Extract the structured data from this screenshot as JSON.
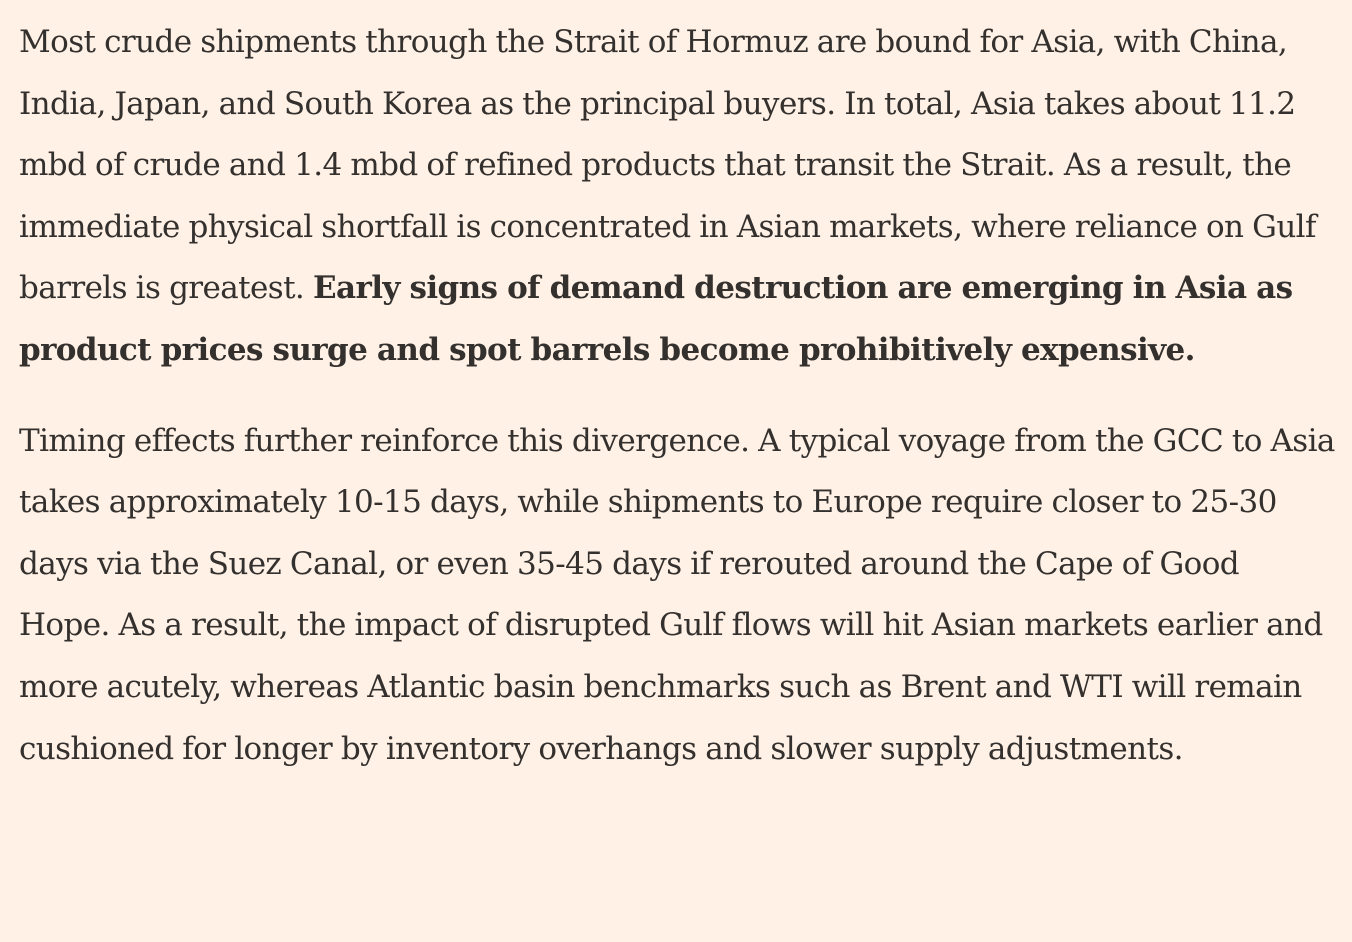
{
  "article": {
    "paragraphs": [
      {
        "text": "Most crude shipments through the Strait of Hormuz are bound for Asia, with China, India, Japan, and South Korea as the principal buyers. In total, Asia takes about 11.2 mbd of crude and 1.4 mbd of refined products that transit the Strait. As a result, the immediate physical shortfall is concentrated in Asian markets, where reliance on Gulf barrels is greatest.",
        "bold": "Early signs of demand destruction are emerging in Asia as product prices surge and spot barrels become prohibitively expensive."
      },
      {
        "text": "Timing effects further reinforce this divergence. A typical voyage from the GCC to Asia takes approximately 10-15 days, while shipments to Europe require closer to 25-30 days via the Suez Canal, or even 35-45 days if rerouted around the Cape of Good Hope. As a result, the impact of disrupted Gulf flows will hit Asian markets earlier and more acutely, whereas Atlantic basin benchmarks such as Brent and WTI will remain cushioned for longer by inventory overhangs and slower supply adjustments."
      }
    ]
  },
  "colors": {
    "background": "#fff1e6",
    "text": "#33302e"
  }
}
